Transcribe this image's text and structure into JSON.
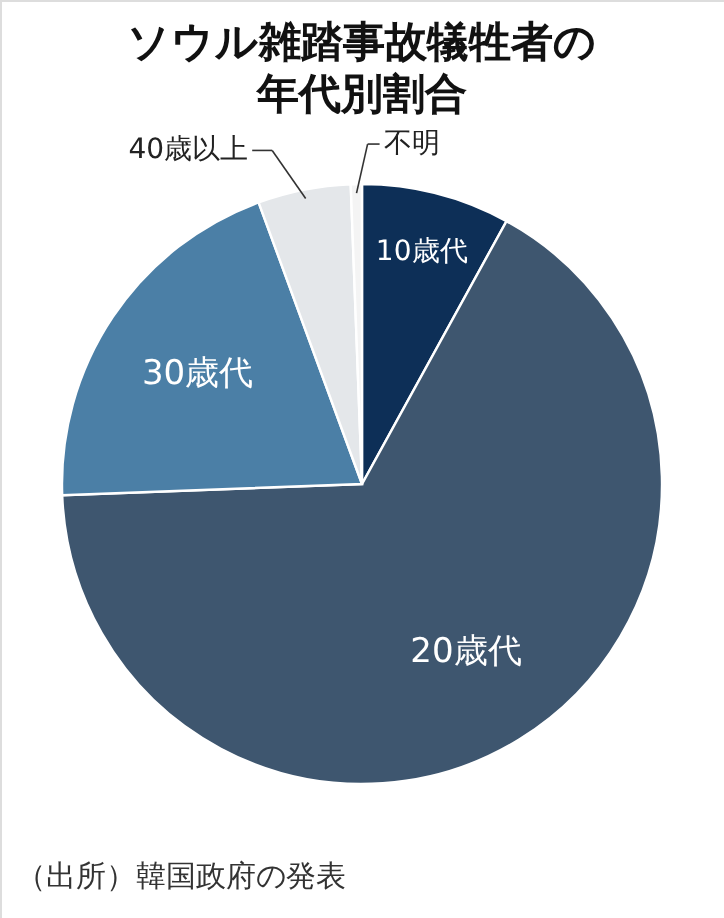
{
  "chart_data": {
    "type": "pie",
    "title": "ソウル雑踏事故犠牲者の年代別割合",
    "categories": [
      "10歳代",
      "20歳代",
      "30歳代",
      "40歳以上",
      "不明"
    ],
    "values": [
      8,
      66.4,
      20,
      5,
      0.6
    ],
    "colors": [
      "#0d2f57",
      "#3e566f",
      "#4b7fa6",
      "#e4e7ea",
      "#f4f4f4"
    ],
    "annotations": [
      "（出所）韓国政府の発表"
    ]
  }
}
